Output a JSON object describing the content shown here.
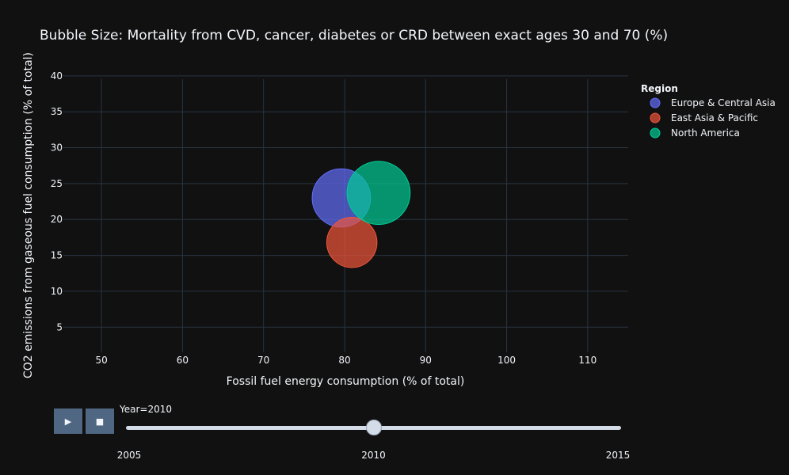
{
  "chart_data": {
    "type": "scatter",
    "title": "Bubble Size: Mortality from CVD, cancer, diabetes or CRD between exact ages 30 and 70 (%)",
    "xlabel": "Fossil fuel energy consumption (% of total)",
    "ylabel": "CO2 emissions from gaseous fuel consumption (% of total)",
    "xlim": [
      45.3,
      115
    ],
    "ylim": [
      1.5,
      41.2
    ],
    "xticks": [
      50,
      60,
      70,
      80,
      90,
      100,
      110
    ],
    "yticks": [
      5,
      10,
      15,
      20,
      25,
      30,
      35,
      40
    ],
    "grid": true,
    "legend_title": "Region",
    "legend_position": "top-right",
    "series": [
      {
        "name": "Europe & Central Asia",
        "color": "#636efa",
        "x": [
          79.6
        ],
        "y": [
          23.0
        ],
        "size": [
          18.0
        ]
      },
      {
        "name": "East Asia & Pacific",
        "color": "#ef553b",
        "x": [
          80.9
        ],
        "y": [
          16.8
        ],
        "size": [
          15.5
        ]
      },
      {
        "name": "North America",
        "color": "#00cc96",
        "x": [
          84.2
        ],
        "y": [
          23.7
        ],
        "size": [
          19.5
        ]
      }
    ]
  },
  "animation": {
    "play_icon": "▶",
    "stop_icon": "■",
    "current_label": "Year=2010",
    "current_value": 2010,
    "range": [
      2005,
      2015
    ],
    "ticks": [
      "2005",
      "2010",
      "2015"
    ]
  }
}
